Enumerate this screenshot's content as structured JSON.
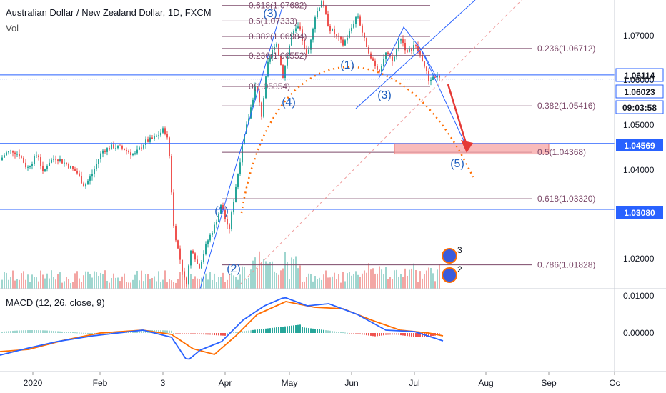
{
  "header": {
    "symbol": "Australian Dollar / New Zealand Dollar, 1D, FXCM",
    "volume_label": "Vol",
    "macd_label": "MACD (12, 26, close, 9)"
  },
  "colors": {
    "up": "#26a69a",
    "down": "#ef5350",
    "up_vol": "#9fd6cf",
    "down_vol": "#f3a6a4",
    "hline": "#2962ff",
    "fib": "#7d4a6a",
    "macd": "#2962ff",
    "signal": "#ff6d00",
    "arc": "#ff6d00",
    "arrow": "#e53935",
    "zone": "#f7a4a4"
  },
  "chart_data": {
    "type": "candlestick",
    "y_axis_ticks": [
      "1.07000",
      "1.06000",
      "1.05000",
      "1.04000",
      "1.02000"
    ],
    "x_axis_ticks": [
      "2020",
      "Feb",
      "3",
      "Apr",
      "May",
      "Jun",
      "Jul",
      "Aug",
      "Sep",
      "Oc"
    ],
    "price_tags": [
      {
        "value": "1.06114",
        "style": "outline"
      },
      {
        "value": "1.06023",
        "style": "outline"
      },
      {
        "value": "09:03:58",
        "style": "outline"
      },
      {
        "value": "1.04569",
        "style": "solid"
      },
      {
        "value": "1.03080",
        "style": "solid"
      }
    ],
    "horizontal_levels": [
      1.06114,
      1.04569,
      1.0308
    ],
    "fib_left": [
      {
        "label": "0.618(1.07682)",
        "price": 1.07682
      },
      {
        "label": "0.5(1.07333)",
        "price": 1.07333
      },
      {
        "label": "0.382(1.06984)",
        "price": 1.06984
      },
      {
        "label": "0.236(1.06552)",
        "price": 1.06552
      },
      {
        "label": "0(1.05854)",
        "price": 1.05854
      }
    ],
    "fib_right": [
      {
        "label": "0.236(1.06712)",
        "price": 1.06712
      },
      {
        "label": "0.382(1.05416)",
        "price": 1.05416
      },
      {
        "label": "0.5(1.04368)",
        "price": 1.04368
      },
      {
        "label": "0.618(1.03320)",
        "price": 1.0332
      },
      {
        "label": "0.786(1.01828)",
        "price": 1.01828
      }
    ],
    "wave_labels": [
      "(1)",
      "(2)",
      "(3)",
      "(4)",
      "(5)",
      "(1)",
      "(3)"
    ],
    "price_axis": {
      "ticks": [
        1.07,
        1.06,
        1.05,
        1.04,
        1.02
      ]
    },
    "macd_axis_ticks": [
      "0.01000",
      "0.00000"
    ],
    "series": [
      {
        "name": "Price candles",
        "values": []
      },
      {
        "name": "MACD",
        "values": []
      },
      {
        "name": "Signal",
        "values": []
      }
    ]
  }
}
